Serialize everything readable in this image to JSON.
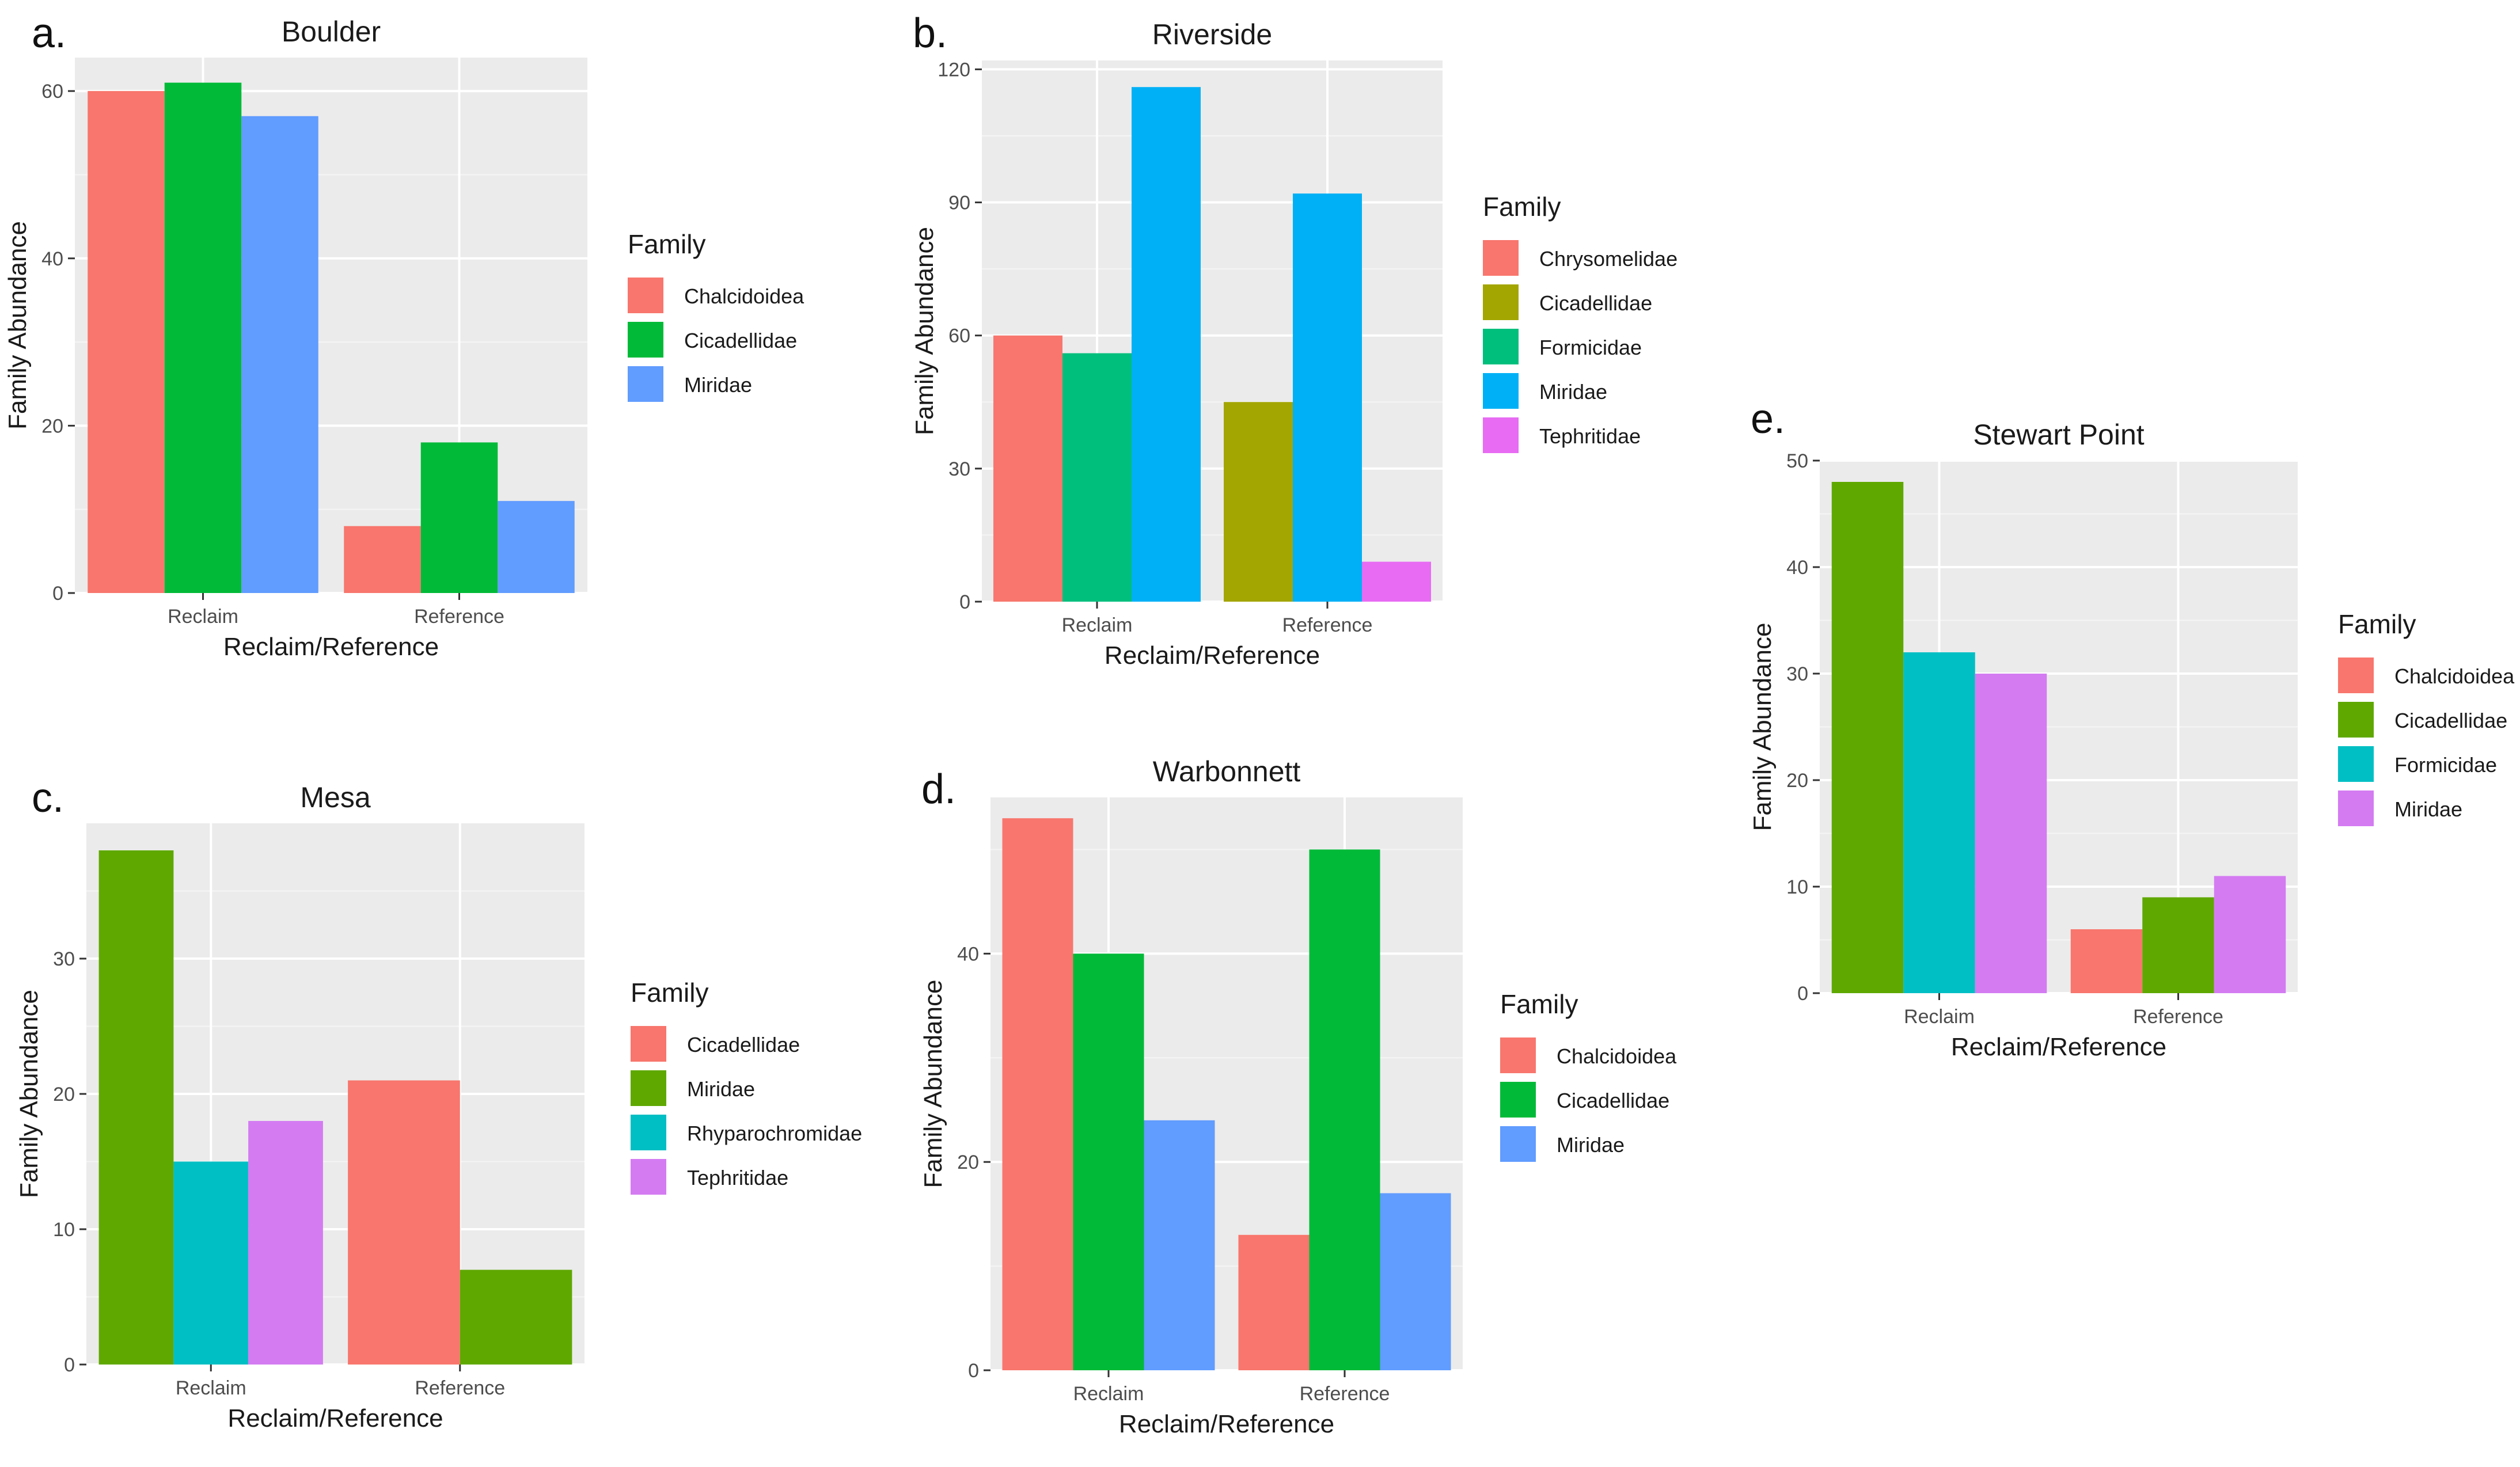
{
  "chart_data": [
    {
      "type": "bar",
      "panel": "a.",
      "title": "Boulder",
      "xlabel": "Reclaim/Reference",
      "ylabel": "Family Abundance",
      "categories": [
        "Reclaim",
        "Reference"
      ],
      "ylim": [
        0,
        64
      ],
      "yticks": [
        0,
        20,
        40,
        60
      ],
      "grid": true,
      "legend_title": "Family",
      "legend_position": "right",
      "series": [
        {
          "name": "Chalcidoidea",
          "color": "#F8766D",
          "values": [
            60,
            8
          ]
        },
        {
          "name": "Cicadellidae",
          "color": "#00BA38",
          "values": [
            61,
            18
          ]
        },
        {
          "name": "Miridae",
          "color": "#619CFF",
          "values": [
            57,
            11
          ]
        }
      ]
    },
    {
      "type": "bar",
      "panel": "b.",
      "title": "Riverside",
      "xlabel": "Reclaim/Reference",
      "ylabel": "Family Abundance",
      "categories": [
        "Reclaim",
        "Reference"
      ],
      "ylim": [
        0,
        122
      ],
      "yticks": [
        0,
        30,
        60,
        90,
        120
      ],
      "grid": true,
      "legend_title": "Family",
      "legend_position": "right",
      "series": [
        {
          "name": "Chrysomelidae",
          "color": "#F8766D",
          "values": [
            60,
            null
          ]
        },
        {
          "name": "Cicadellidae",
          "color": "#A3A500",
          "values": [
            null,
            45
          ]
        },
        {
          "name": "Formicidae",
          "color": "#00BF7D",
          "values": [
            56,
            null
          ]
        },
        {
          "name": "Miridae",
          "color": "#00B0F6",
          "values": [
            116,
            92
          ]
        },
        {
          "name": "Tephritidae",
          "color": "#E76BF3",
          "values": [
            null,
            9
          ]
        }
      ]
    },
    {
      "type": "bar",
      "panel": "c.",
      "title": "Mesa",
      "xlabel": "Reclaim/Reference",
      "ylabel": "Family Abundance",
      "categories": [
        "Reclaim",
        "Reference"
      ],
      "ylim": [
        0,
        40
      ],
      "yticks": [
        0,
        10,
        20,
        30
      ],
      "grid": true,
      "legend_title": "Family",
      "legend_position": "right",
      "series": [
        {
          "name": "Cicadellidae",
          "color": "#F8766D",
          "values": [
            null,
            21
          ]
        },
        {
          "name": "Miridae",
          "color": "#5FA800",
          "values": [
            38,
            7
          ]
        },
        {
          "name": "Rhyparochromidae",
          "color": "#00BFC4",
          "values": [
            15,
            null
          ]
        },
        {
          "name": "Tephritidae",
          "color": "#D47BF2",
          "values": [
            18,
            null
          ]
        }
      ]
    },
    {
      "type": "bar",
      "panel": "d.",
      "title": "Warbonnett",
      "xlabel": "Reclaim/Reference",
      "ylabel": "Family Abundance",
      "categories": [
        "Reclaim",
        "Reference"
      ],
      "ylim": [
        0,
        55
      ],
      "yticks": [
        0,
        20,
        40
      ],
      "grid": true,
      "legend_title": "Family",
      "legend_position": "right",
      "series": [
        {
          "name": "Chalcidoidea",
          "color": "#F8766D",
          "values": [
            53,
            13
          ]
        },
        {
          "name": "Cicadellidae",
          "color": "#00BA38",
          "values": [
            40,
            50
          ]
        },
        {
          "name": "Miridae",
          "color": "#619CFF",
          "values": [
            24,
            17
          ]
        }
      ]
    },
    {
      "type": "bar",
      "panel": "e.",
      "title": "Stewart Point",
      "xlabel": "Reclaim/Reference",
      "ylabel": "Family Abundance",
      "categories": [
        "Reclaim",
        "Reference"
      ],
      "ylim": [
        0,
        50
      ],
      "yticks": [
        0,
        10,
        20,
        30,
        40,
        50
      ],
      "grid": true,
      "legend_title": "Family",
      "legend_position": "right",
      "series": [
        {
          "name": "Chalcidoidea",
          "color": "#F8766D",
          "values": [
            null,
            6
          ]
        },
        {
          "name": "Cicadellidae",
          "color": "#5FA800",
          "values": [
            48,
            9
          ]
        },
        {
          "name": "Formicidae",
          "color": "#00BFC4",
          "values": [
            32,
            null
          ]
        },
        {
          "name": "Miridae",
          "color": "#D47BF2",
          "values": [
            30,
            11
          ]
        }
      ]
    }
  ]
}
